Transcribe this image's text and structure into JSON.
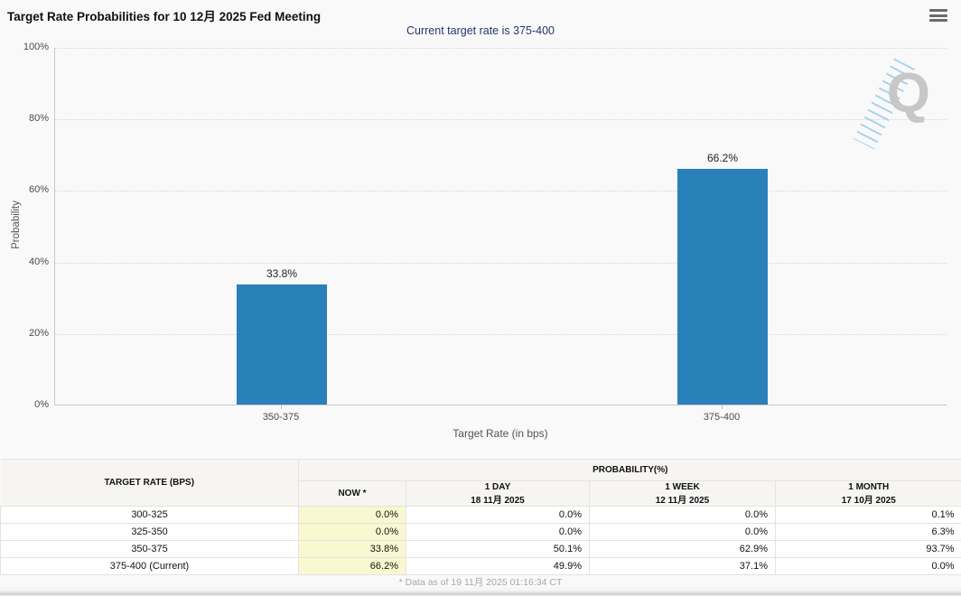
{
  "header": {
    "title": "Target Rate Probabilities for 10 12月 2025 Fed Meeting",
    "subtitle": "Current target rate is 375-400"
  },
  "watermark": {
    "letter": "Q"
  },
  "chart_data": {
    "type": "bar",
    "categories": [
      "350-375",
      "375-400"
    ],
    "values": [
      33.8,
      66.2
    ],
    "value_labels": [
      "33.8%",
      "66.2%"
    ],
    "title": "Target Rate Probabilities for 10 12月 2025 Fed Meeting",
    "xlabel": "Target Rate (in bps)",
    "ylabel": "Probability",
    "ylim": [
      0,
      100
    ],
    "yticks": [
      "100%",
      "80%",
      "60%",
      "40%",
      "20%",
      "0%"
    ],
    "grid": "horizontal-dotted",
    "legend": "none",
    "bar_color": "#2a80b9"
  },
  "table": {
    "col1_header": "TARGET RATE (BPS)",
    "group_header": "PROBABILITY(%)",
    "columns": [
      {
        "label": "NOW *",
        "sub": ""
      },
      {
        "label": "1 DAY",
        "sub": "18 11月 2025"
      },
      {
        "label": "1 WEEK",
        "sub": "12 11月 2025"
      },
      {
        "label": "1 MONTH",
        "sub": "17 10月 2025"
      }
    ],
    "rows": [
      {
        "rate": "300-325",
        "now": "0.0%",
        "one_day": "0.0%",
        "one_week": "0.0%",
        "one_month": "0.1%"
      },
      {
        "rate": "325-350",
        "now": "0.0%",
        "one_day": "0.0%",
        "one_week": "0.0%",
        "one_month": "6.3%"
      },
      {
        "rate": "350-375",
        "now": "33.8%",
        "one_day": "50.1%",
        "one_week": "62.9%",
        "one_month": "93.7%"
      },
      {
        "rate": "375-400 (Current)",
        "now": "66.2%",
        "one_day": "49.9%",
        "one_week": "37.1%",
        "one_month": "0.0%"
      }
    ],
    "footnote": "* Data as of 19 11月 2025 01:16:34 CT"
  },
  "colors": {
    "bar": "#2a80b9",
    "now_column_bg": "#f9f9d1",
    "subtitle_text": "#24376b"
  }
}
